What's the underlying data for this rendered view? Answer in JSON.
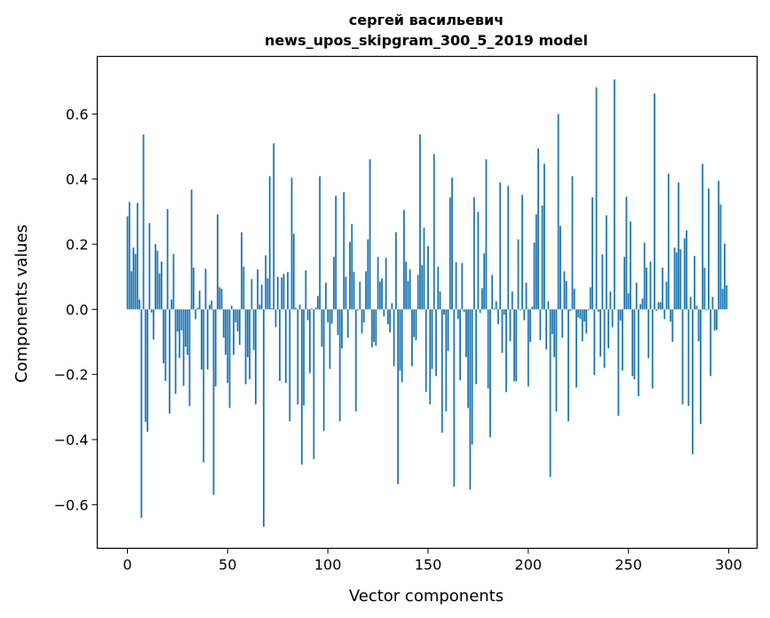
{
  "chart_data": {
    "type": "bar",
    "title_lines": [
      "сергей васильевич",
      "news_upos_skipgram_300_5_2019 model"
    ],
    "xlabel": "Vector components",
    "ylabel": "Components values",
    "xlim": [
      -15.07,
      314.2
    ],
    "ylim": [
      -0.734,
      0.777
    ],
    "xticks": [
      0,
      50,
      100,
      150,
      200,
      250,
      300
    ],
    "xtick_labels": [
      "0",
      "50",
      "100",
      "150",
      "200",
      "250",
      "300"
    ],
    "yticks": [
      -0.6,
      -0.4,
      -0.2,
      0.0,
      0.2,
      0.4,
      0.6
    ],
    "ytick_labels": [
      "−0.6",
      "−0.4",
      "−0.2",
      "0.0",
      "0.2",
      "0.4",
      "0.6"
    ],
    "grid": false,
    "bar_color": "#1f77b4",
    "bar_width": 0.8,
    "values": [
      0.286,
      0.33,
      0.117,
      0.19,
      0.17,
      0.327,
      0.03,
      -0.64,
      0.537,
      -0.346,
      -0.376,
      0.265,
      -0.01,
      -0.093,
      0.2,
      0.18,
      0.11,
      0.147,
      -0.166,
      -0.22,
      0.308,
      -0.32,
      0.03,
      0.17,
      -0.26,
      -0.068,
      -0.15,
      -0.065,
      -0.235,
      -0.115,
      -0.14,
      -0.297,
      0.368,
      0.128,
      -0.03,
      0.005,
      0.057,
      -0.185,
      -0.47,
      0.125,
      -0.185,
      0.014,
      0.027,
      -0.57,
      -0.237,
      0.292,
      0.068,
      0.063,
      -0.087,
      -0.14,
      -0.226,
      -0.303,
      0.011,
      -0.14,
      -0.04,
      -0.068,
      -0.109,
      0.237,
      0.131,
      -0.23,
      -0.147,
      -0.215,
      0.093,
      -0.125,
      -0.292,
      0.123,
      0.014,
      0.076,
      -0.668,
      0.166,
      0.095,
      0.409,
      0.003,
      0.51,
      -0.055,
      0.1,
      -0.22,
      0.098,
      0.109,
      -0.226,
      0.115,
      -0.344,
      0.404,
      0.232,
      0.005,
      -0.292,
      0.014,
      -0.477,
      -0.295,
      0.12,
      -0.033,
      -0.196,
      0.003,
      -0.46,
      0.005,
      0.041,
      0.409,
      -0.115,
      -0.374,
      0.082,
      -0.04,
      -0.183,
      -0.044,
      0.161,
      0.349,
      -0.079,
      -0.344,
      -0.12,
      0.36,
      0.1,
      -0.087,
      0.207,
      0.262,
      0.115,
      -0.314,
      -0.003,
      0.085,
      -0.074,
      -0.04,
      0.117,
      0.215,
      0.461,
      -0.117,
      -0.1,
      -0.112,
      0.161,
      0.085,
      0.095,
      -0.022,
      0.158,
      -0.046,
      -0.071,
      0.019,
      -0.175,
      0.237,
      -0.537,
      -0.188,
      -0.224,
      0.305,
      0.147,
      0.087,
      0.123,
      -0.175,
      -0.085,
      -0.095,
      0.106,
      0.537,
      0.136,
      0.251,
      -0.254,
      0.194,
      -0.292,
      -0.183,
      0.477,
      -0.205,
      0.131,
      0.055,
      -0.379,
      -0.016,
      -0.314,
      -0.128,
      0.344,
      0.404,
      -0.545,
      0.145,
      -0.03,
      -0.218,
      0.142,
      -0.008,
      -0.147,
      -0.303,
      -0.554,
      -0.415,
      0.344,
      -0.23,
      0.3,
      -0.011,
      0.065,
      0.172,
      0.461,
      -0.243,
      -0.393,
      0.106,
      0.003,
      0.025,
      -0.046,
      0.39,
      -0.134,
      -0.016,
      -0.254,
      0.379,
      -0.098,
      0.055,
      -0.221,
      -0.221,
      0.215,
      -0.003,
      0.352,
      -0.033,
      0.082,
      -0.237,
      -0.1,
      0.008,
      0.205,
      0.292,
      0.494,
      -0.095,
      0.319,
      0.447,
      -0.123,
      0.025,
      -0.515,
      -0.076,
      -0.147,
      -0.314,
      0.6,
      0.256,
      -0.087,
      0.117,
      0.087,
      -0.344,
      -0.005,
      0.409,
      0.063,
      -0.24,
      -0.025,
      -0.03,
      -0.098,
      -0.038,
      -0.074,
      -0.003,
      0.068,
      0.344,
      -0.202,
      0.682,
      -0.008,
      -0.145,
      0.169,
      -0.18,
      0.289,
      -0.12,
      0.055,
      -0.055,
      0.706,
      0.0,
      -0.327,
      -0.035,
      -0.188,
      0.161,
      0.346,
      0.049,
      0.27,
      -0.205,
      -0.215,
      0.082,
      -0.267,
      0.016,
      0.033,
      0.205,
      0.128,
      -0.15,
      0.147,
      -0.243,
      0.663,
      -0.005,
      0.022,
      0.022,
      0.128,
      -0.03,
      0.085,
      0.417,
      -0.038,
      -0.1,
      0.19,
      0.175,
      0.39,
      0.185,
      -0.292,
      0.218,
      0.243,
      -0.297,
      0.038,
      -0.445,
      0.164,
      0.011,
      -0.098,
      -0.352,
      0.447,
      0.128,
      -0.003,
      0.371,
      -0.205,
      0.038,
      -0.065,
      -0.063,
      0.395,
      0.322,
      0.063,
      0.202,
      0.074
    ]
  }
}
